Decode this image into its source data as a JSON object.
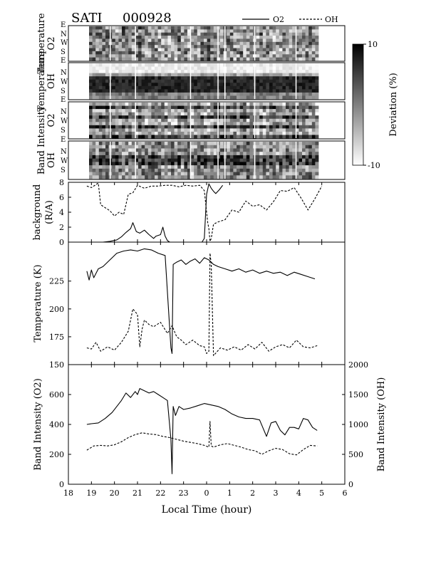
{
  "header": {
    "instrument": "SATI",
    "date_code": "000928",
    "legend_o2": "O2",
    "legend_oh": "OH"
  },
  "keogram": {
    "panel_labels": [
      {
        "line1": "Temperature",
        "line2": "O2"
      },
      {
        "line1": "Temperature",
        "line2": "OH"
      },
      {
        "line1": "Band Intensity",
        "line2": "O2"
      },
      {
        "line1": "Band Intensity",
        "line2": "OH"
      }
    ],
    "direction_labels": [
      "E",
      "N",
      "W",
      "S",
      "E"
    ],
    "colorbar": {
      "label": "Deviation (%)",
      "max_label": "10",
      "min_label": "-10",
      "min": -10,
      "max": 10
    }
  },
  "chart_data": [
    {
      "type": "line",
      "ylabel_line1": "background",
      "ylabel_line2": "(R/A)",
      "ylim": [
        0,
        8
      ],
      "yticks": [
        0,
        2,
        4,
        6,
        8
      ],
      "xlim": [
        18,
        30
      ],
      "series": [
        {
          "name": "O2",
          "style": "solid",
          "x": [
            18.8,
            19.1,
            19.5,
            19.8,
            20.1,
            20.3,
            20.5,
            20.7,
            20.8,
            20.95,
            21.1,
            21.3,
            21.5,
            21.7,
            21.8,
            22.0,
            22.1,
            22.2,
            22.3,
            22.4,
            23.8,
            23.9,
            24.0,
            24.1,
            24.2,
            24.3,
            24.4,
            24.55,
            24.7
          ],
          "y": [
            0,
            0,
            0,
            0.1,
            0.3,
            0.7,
            1.3,
            1.8,
            2.6,
            1.4,
            1.2,
            1.6,
            1.0,
            0.5,
            0.8,
            1.0,
            2.0,
            0.8,
            0.2,
            0,
            0,
            0.5,
            6.4,
            7.8,
            7.2,
            6.8,
            6.5,
            7.0,
            7.6
          ]
        },
        {
          "name": "OH",
          "style": "dashed",
          "x": [
            18.8,
            19.0,
            19.3,
            19.4,
            19.6,
            19.8,
            20.0,
            20.2,
            20.4,
            20.6,
            20.8,
            21.0,
            21.3,
            21.6,
            21.9,
            22.2,
            22.5,
            22.8,
            23.1,
            23.4,
            23.7,
            23.9,
            24.0,
            24.05,
            24.1,
            24.15,
            24.2,
            24.3,
            24.5,
            24.8,
            25.1,
            25.4,
            25.7,
            26.0,
            26.3,
            26.6,
            26.9,
            27.2,
            27.5,
            27.8,
            28.1,
            28.4,
            28.7,
            29.0
          ],
          "y": [
            7.5,
            7.3,
            7.9,
            5.0,
            4.6,
            4.2,
            3.5,
            4.0,
            3.7,
            6.4,
            6.6,
            7.6,
            7.2,
            7.5,
            7.5,
            7.6,
            7.6,
            7.4,
            7.6,
            7.5,
            7.6,
            6.9,
            4.0,
            2.6,
            1.8,
            0.1,
            0.5,
            2.4,
            2.7,
            3.0,
            4.3,
            4.0,
            5.5,
            4.8,
            5.0,
            4.3,
            5.4,
            6.9,
            6.8,
            7.3,
            5.9,
            4.3,
            5.8,
            7.5
          ]
        }
      ]
    },
    {
      "type": "line",
      "ylabel": "Temperature (K)",
      "ylim": [
        150,
        260
      ],
      "yticks": [
        150,
        175,
        200,
        225
      ],
      "xlim": [
        18,
        30
      ],
      "series": [
        {
          "name": "O2",
          "style": "solid",
          "x": [
            18.8,
            18.9,
            19.0,
            19.1,
            19.2,
            19.3,
            19.5,
            19.8,
            20.1,
            20.4,
            20.7,
            21.0,
            21.3,
            21.6,
            21.9,
            22.2,
            22.45,
            22.5,
            22.55,
            22.7,
            22.9,
            23.1,
            23.3,
            23.5,
            23.7,
            23.9,
            24.1,
            24.3,
            24.5,
            24.8,
            25.1,
            25.4,
            25.7,
            26.0,
            26.3,
            26.6,
            26.9,
            27.2,
            27.5,
            27.8,
            28.1,
            28.4,
            28.7
          ],
          "y": [
            234,
            226,
            235,
            228,
            232,
            236,
            238,
            244,
            250,
            252,
            253,
            252,
            254,
            253,
            250,
            248,
            165,
            160,
            240,
            242,
            244,
            240,
            243,
            245,
            241,
            246,
            244,
            240,
            238,
            236,
            234,
            236,
            233,
            235,
            232,
            234,
            232,
            233,
            230,
            233,
            231,
            229,
            227
          ]
        },
        {
          "name": "OH",
          "style": "dashed",
          "x": [
            18.8,
            19.0,
            19.2,
            19.4,
            19.7,
            20.0,
            20.3,
            20.6,
            20.8,
            21.0,
            21.1,
            21.2,
            21.3,
            21.5,
            21.7,
            22.0,
            22.3,
            22.5,
            22.7,
            22.9,
            23.1,
            23.4,
            23.7,
            23.9,
            24.0,
            24.1,
            24.15,
            24.2,
            24.3,
            24.6,
            24.9,
            25.2,
            25.5,
            25.8,
            26.1,
            26.4,
            26.7,
            27.0,
            27.3,
            27.6,
            27.9,
            28.2,
            28.5,
            28.8
          ],
          "y": [
            165,
            164,
            170,
            162,
            166,
            163,
            170,
            180,
            200,
            195,
            166,
            182,
            190,
            186,
            184,
            188,
            178,
            185,
            175,
            172,
            168,
            172,
            167,
            166,
            160,
            162,
            250,
            240,
            158,
            165,
            163,
            166,
            163,
            168,
            164,
            170,
            162,
            166,
            168,
            165,
            172,
            166,
            165,
            167
          ]
        }
      ]
    },
    {
      "type": "line",
      "ylabel": "Band Intensity (O2)",
      "ylabel_right": "Band Intensity (OH)",
      "ylim": [
        0,
        800
      ],
      "yticks": [
        0,
        200,
        400,
        600
      ],
      "ylim_right": [
        0,
        2000
      ],
      "yticks_right": [
        0,
        500,
        1000,
        1500,
        2000
      ],
      "xlim": [
        18,
        30
      ],
      "xlabel": "Local Time (hour)",
      "xtick_labels": [
        "18",
        "19",
        "20",
        "21",
        "22",
        "23",
        "0",
        "1",
        "2",
        "3",
        "4",
        "5",
        "6"
      ],
      "xticks": [
        18,
        19,
        20,
        21,
        22,
        23,
        24,
        25,
        26,
        27,
        28,
        29,
        30
      ],
      "series": [
        {
          "name": "O2",
          "style": "solid",
          "x": [
            18.8,
            19.0,
            19.3,
            19.6,
            19.9,
            20.1,
            20.3,
            20.5,
            20.7,
            20.9,
            21.0,
            21.1,
            21.3,
            21.5,
            21.7,
            21.9,
            22.1,
            22.3,
            22.45,
            22.5,
            22.55,
            22.65,
            22.8,
            23.0,
            23.3,
            23.6,
            23.9,
            24.2,
            24.5,
            24.8,
            25.1,
            25.4,
            25.7,
            26.0,
            26.3,
            26.6,
            26.8,
            27.0,
            27.2,
            27.4,
            27.6,
            27.8,
            28.0,
            28.2,
            28.4,
            28.6,
            28.8
          ],
          "y": [
            400,
            405,
            410,
            440,
            480,
            520,
            560,
            610,
            580,
            620,
            600,
            640,
            625,
            610,
            620,
            600,
            580,
            560,
            300,
            70,
            520,
            460,
            520,
            500,
            510,
            525,
            540,
            530,
            520,
            500,
            470,
            450,
            440,
            440,
            430,
            320,
            410,
            420,
            360,
            330,
            380,
            380,
            370,
            440,
            430,
            380,
            360
          ]
        },
        {
          "name": "OH",
          "style": "dashed",
          "x": [
            18.8,
            19.1,
            19.4,
            19.7,
            20.0,
            20.3,
            20.6,
            20.9,
            21.2,
            21.5,
            21.8,
            22.1,
            22.4,
            22.7,
            23.0,
            23.3,
            23.6,
            23.9,
            24.1,
            24.15,
            24.2,
            24.3,
            24.6,
            24.9,
            25.2,
            25.5,
            25.8,
            26.1,
            26.4,
            26.7,
            27.0,
            27.3,
            27.6,
            27.9,
            28.2,
            28.5,
            28.8
          ],
          "y": [
            570,
            640,
            650,
            640,
            660,
            710,
            780,
            830,
            860,
            840,
            830,
            800,
            780,
            750,
            720,
            700,
            680,
            650,
            620,
            1050,
            640,
            620,
            660,
            680,
            650,
            620,
            580,
            560,
            500,
            560,
            600,
            580,
            510,
            490,
            580,
            650,
            640
          ]
        }
      ]
    }
  ]
}
